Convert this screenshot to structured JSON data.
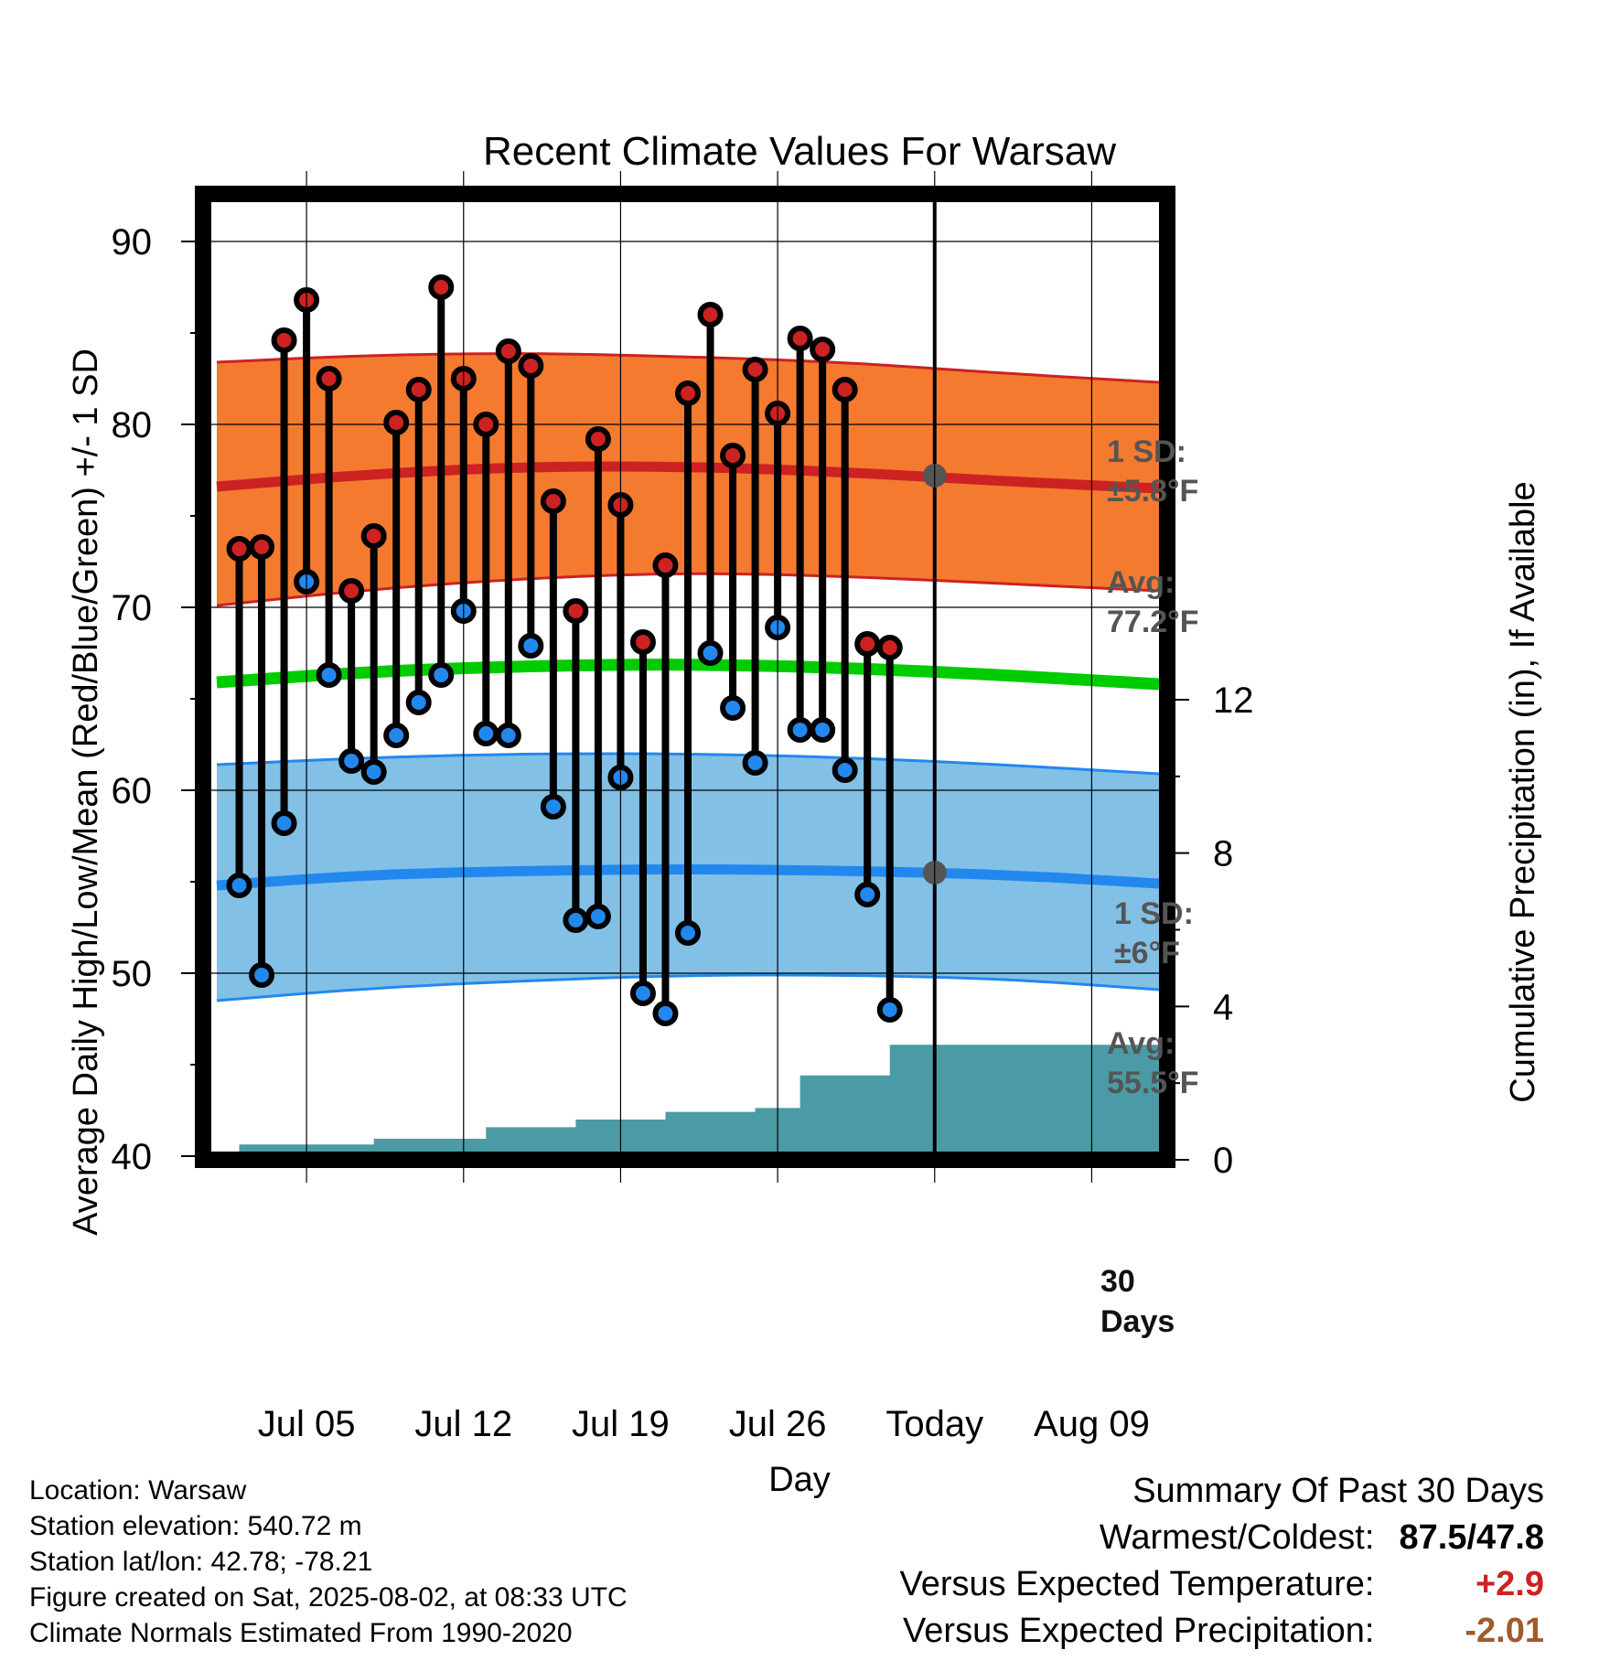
{
  "chart_data": {
    "type": "line",
    "title": "Recent Climate Values For Warsaw",
    "xlabel": "Day",
    "ylabel": "Average Daily High/Low/Mean (Red/Blue/Green) +/- 1 SD",
    "y2label": "Cumulative Precipitation (in), If Available",
    "ylim": [
      40,
      92.5
    ],
    "y2lim": [
      0,
      22
    ],
    "xlim": [
      "2025-07-01",
      "2025-08-12"
    ],
    "grid": true,
    "x_ticks": [
      {
        "date": "2025-07-05",
        "label": "Jul 05"
      },
      {
        "date": "2025-07-12",
        "label": "Jul 12"
      },
      {
        "date": "2025-07-19",
        "label": "Jul 19"
      },
      {
        "date": "2025-07-26",
        "label": "Jul 26"
      },
      {
        "date": "2025-08-02",
        "label": "Today"
      },
      {
        "date": "2025-08-09",
        "label": "Aug 09"
      }
    ],
    "y_ticks": [
      "40",
      "50",
      "60",
      "70",
      "80",
      "90"
    ],
    "y2_ticks": [
      "0",
      "4",
      "8",
      "12"
    ],
    "today": "2025-08-02",
    "dates": [
      "2025-07-02",
      "2025-07-03",
      "2025-07-04",
      "2025-07-05",
      "2025-07-06",
      "2025-07-07",
      "2025-07-08",
      "2025-07-09",
      "2025-07-10",
      "2025-07-11",
      "2025-07-12",
      "2025-07-13",
      "2025-07-14",
      "2025-07-15",
      "2025-07-16",
      "2025-07-17",
      "2025-07-18",
      "2025-07-19",
      "2025-07-20",
      "2025-07-21",
      "2025-07-22",
      "2025-07-23",
      "2025-07-24",
      "2025-07-25",
      "2025-07-26",
      "2025-07-27",
      "2025-07-28",
      "2025-07-29",
      "2025-07-30",
      "2025-07-31",
      "2025-08-01"
    ],
    "series": [
      {
        "values": [
          73.2,
          73.3,
          84.6,
          86.8,
          82.5,
          70.9,
          73.9,
          80.1,
          81.9,
          87.5,
          82.5,
          80.0,
          84.0,
          83.2,
          75.8,
          69.8,
          79.2,
          75.6,
          68.1,
          72.3,
          81.7,
          86.0,
          78.3,
          83.0,
          80.6,
          84.7,
          84.1,
          81.9,
          68.0,
          67.8,
          null
        ],
        "color": "#cc2222"
      },
      {
        "values": [
          54.8,
          49.9,
          58.2,
          71.4,
          66.3,
          61.6,
          61.0,
          63.0,
          64.8,
          66.3,
          69.8,
          63.1,
          63.0,
          67.9,
          59.1,
          52.9,
          53.1,
          60.7,
          48.9,
          47.8,
          52.2,
          67.5,
          64.5,
          61.5,
          68.9,
          63.3,
          63.3,
          61.1,
          54.3,
          48.0,
          null
        ],
        "color": "#2288ee"
      }
    ],
    "normals": {
      "dates": [
        "2025-07-01",
        "2025-07-08",
        "2025-07-15",
        "2025-07-22",
        "2025-07-29",
        "2025-08-05",
        "2025-08-12"
      ],
      "high_avg": [
        76.6,
        77.3,
        77.7,
        77.7,
        77.4,
        76.9,
        76.5
      ],
      "high_upper": [
        83.4,
        83.8,
        83.9,
        83.7,
        83.4,
        82.8,
        82.3
      ],
      "high_lower": [
        70.1,
        71.0,
        71.6,
        71.9,
        71.7,
        71.3,
        70.9
      ],
      "mean_avg": [
        65.9,
        66.5,
        66.8,
        66.9,
        66.7,
        66.3,
        65.8
      ],
      "low_avg": [
        54.8,
        55.4,
        55.6,
        55.7,
        55.6,
        55.4,
        54.9
      ],
      "low_upper": [
        61.4,
        61.8,
        62.0,
        62.0,
        61.8,
        61.4,
        60.9
      ],
      "low_lower": [
        48.5,
        49.2,
        49.6,
        49.9,
        49.9,
        49.7,
        49.1
      ],
      "high_color": "#cc2222",
      "high_band_color": "#f47a30",
      "mean_color": "#00cc00",
      "low_color": "#2288ee",
      "low_band_color": "#82c0e6"
    },
    "precip": {
      "color": "#4a9ba5",
      "label_top": "30",
      "label_bottom": "Days",
      "steps": [
        {
          "date": "2025-07-01",
          "value": 0.0
        },
        {
          "date": "2025-07-02",
          "value": 0.4
        },
        {
          "date": "2025-07-08",
          "value": 0.55
        },
        {
          "date": "2025-07-13",
          "value": 0.85
        },
        {
          "date": "2025-07-17",
          "value": 1.05
        },
        {
          "date": "2025-07-21",
          "value": 1.25
        },
        {
          "date": "2025-07-25",
          "value": 1.35
        },
        {
          "date": "2025-07-27",
          "value": 2.2
        },
        {
          "date": "2025-07-31",
          "value": 3.0
        },
        {
          "date": "2025-08-12",
          "value": 3.0
        }
      ]
    },
    "annotations": {
      "high_sd_label": "1 SD:",
      "high_sd_value": "±5.8°F",
      "high_avg_label": "Avg:",
      "high_avg_value": "77.2°F",
      "high_avg_today": 77.2,
      "low_sd_label": "1 SD:",
      "low_sd_value": "±6°F",
      "low_avg_label": "Avg:",
      "low_avg_value": "55.5°F",
      "low_avg_today": 55.5,
      "marker_color": "#555555"
    }
  },
  "footer": {
    "location": "Location: Warsaw",
    "elevation": "Station elevation: 540.72 m",
    "latlon": "Station lat/lon: 42.78; -78.21",
    "created": "Figure created on Sat, 2025-08-02, at 08:33 UTC",
    "normals": "Climate Normals Estimated From 1990-2020"
  },
  "summary": {
    "title": "Summary Of Past 30 Days",
    "warm_cold_label": "Warmest/Coldest:",
    "warm_cold_value": "87.5/47.8",
    "temp_label": "Versus Expected Temperature:",
    "temp_value": "+2.9",
    "temp_color": "#cc2222",
    "precip_label": "Versus Expected Precipitation:",
    "precip_value": "-2.01",
    "precip_color": "#a05a2c"
  }
}
